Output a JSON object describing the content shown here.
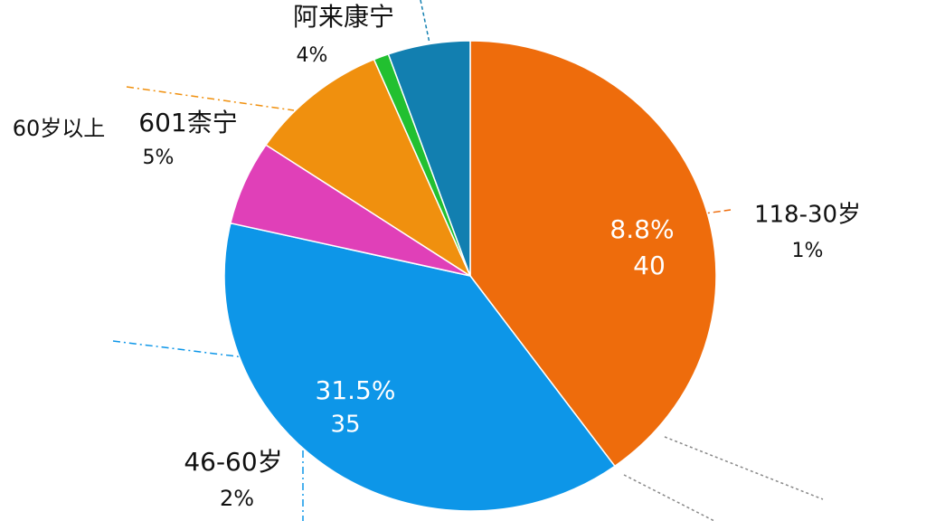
{
  "chart_data": {
    "type": "pie",
    "values": [
      40,
      38.6,
      5.8,
      9.2,
      1,
      5.4
    ],
    "colors": [
      "#ee6c0c",
      "#0d96e8",
      "#e040b8",
      "#f0900e",
      "#22c030",
      "#127fb0"
    ],
    "annotations": [
      "阿来康宁",
      "4%",
      "60岁以上",
      "601柰宁",
      "5%",
      "118-30岁",
      "1%",
      "8.8%",
      "40",
      "31.5%",
      "35",
      "46-60岁",
      "2%"
    ]
  }
}
